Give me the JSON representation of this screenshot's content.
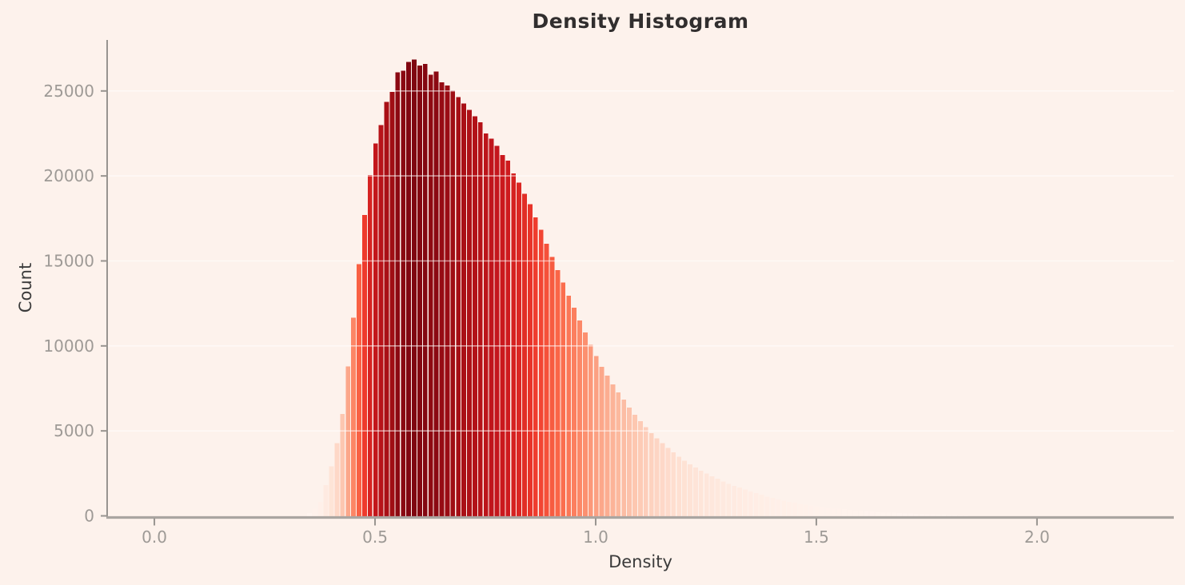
{
  "title": "Density Histogram",
  "colors": {
    "background": "#fdf2ec",
    "title_text": "#312e2e",
    "axis_label_text": "#3b3b3b",
    "tick_label_text": "#9e9a96",
    "spine_left": "#989490",
    "spine_bottom": "#aaa5a1",
    "tick_mark": "#989490",
    "gridline": "rgba(255,255,255,0.55)",
    "bar_gap": "#ffffff"
  },
  "chart_data": {
    "type": "bar",
    "subtype": "histogram",
    "title": "Density Histogram",
    "xlabel": "Density",
    "ylabel": "Count",
    "x_ticks": [
      0.0,
      0.5,
      1.0,
      1.5,
      2.0
    ],
    "x_tick_labels": [
      "0.0",
      "0.5",
      "1.0",
      "1.5",
      "2.0"
    ],
    "y_ticks": [
      0,
      5000,
      10000,
      15000,
      20000,
      25000
    ],
    "y_tick_labels": [
      "0",
      "5000",
      "10000",
      "15000",
      "20000",
      "25000"
    ],
    "xlim": [
      -0.107,
      2.31
    ],
    "ylim": [
      0,
      28000
    ],
    "grid": "horizontal-only",
    "legend": "none",
    "bins": {
      "start": 0.345,
      "width": 0.0125,
      "count": 120
    },
    "counts": [
      170,
      430,
      830,
      1800,
      2910,
      4290,
      6000,
      8800,
      11650,
      14800,
      17700,
      20050,
      21900,
      23000,
      24350,
      24950,
      26100,
      26200,
      26700,
      26850,
      26500,
      26600,
      25950,
      26150,
      25500,
      25320,
      25020,
      24630,
      24270,
      23880,
      23500,
      23150,
      22500,
      22200,
      21760,
      21240,
      20900,
      20150,
      19600,
      18950,
      18340,
      17560,
      16840,
      16000,
      15240,
      14460,
      13720,
      12960,
      12240,
      11490,
      10790,
      10070,
      9400,
      8760,
      8250,
      7740,
      7260,
      6830,
      6360,
      5950,
      5570,
      5210,
      4870,
      4560,
      4280,
      3990,
      3730,
      3470,
      3240,
      3030,
      2850,
      2660,
      2490,
      2320,
      2180,
      2030,
      1890,
      1770,
      1660,
      1550,
      1440,
      1340,
      1240,
      1140,
      1050,
      970,
      900,
      830,
      770,
      710,
      650,
      600,
      560,
      520,
      480,
      450,
      420,
      390,
      360,
      330,
      300,
      280,
      260,
      240,
      220,
      200,
      185,
      170,
      150,
      135,
      120,
      110,
      100,
      90,
      75,
      65,
      55,
      45,
      35,
      25
    ],
    "colormap": "Reds",
    "colormap_stops": [
      [
        0.0,
        "#fff5f0"
      ],
      [
        0.125,
        "#fee0d2"
      ],
      [
        0.25,
        "#fcbba1"
      ],
      [
        0.375,
        "#fc9272"
      ],
      [
        0.5,
        "#fb6a4a"
      ],
      [
        0.625,
        "#ef3b2c"
      ],
      [
        0.75,
        "#cb181d"
      ],
      [
        0.875,
        "#a50f15"
      ],
      [
        1.0,
        "#67000d"
      ]
    ],
    "color_vmin": 0,
    "color_vmax": 28200
  }
}
